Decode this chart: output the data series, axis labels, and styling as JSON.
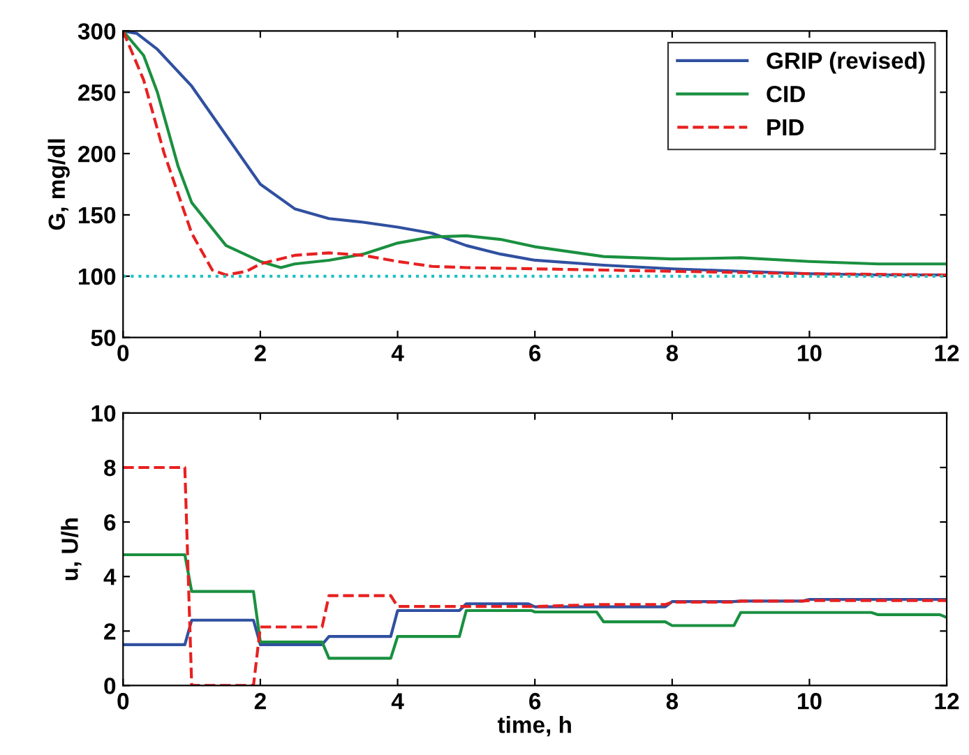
{
  "chart_data": [
    {
      "type": "line",
      "ylabel": "G, mg/dl",
      "xlim": [
        0,
        12
      ],
      "ylim": [
        50,
        300
      ],
      "xticks": [
        0,
        2,
        4,
        6,
        8,
        10,
        12
      ],
      "yticks": [
        50,
        100,
        150,
        200,
        250,
        300
      ],
      "legend": "top right",
      "grid": false,
      "ref_lines": [
        {
          "axis": "y",
          "value": 100,
          "color": "#20c0c0",
          "line_style": "dotted"
        }
      ],
      "series": [
        {
          "name": "GRIP (revised)",
          "color": "#3050a0",
          "line_style": "solid",
          "x": [
            0,
            0.2,
            0.5,
            1,
            1.5,
            2,
            2.5,
            3,
            3.5,
            4,
            4.5,
            5,
            5.5,
            6,
            7,
            8,
            9,
            10,
            11,
            12
          ],
          "values": [
            300,
            298,
            285,
            255,
            215,
            175,
            155,
            147,
            144,
            140,
            135,
            125,
            118,
            113,
            109,
            106,
            104,
            102,
            101,
            101
          ]
        },
        {
          "name": "CID",
          "color": "#1a9040",
          "line_style": "solid",
          "x": [
            0,
            0.3,
            0.5,
            0.8,
            1,
            1.5,
            2,
            2.3,
            2.5,
            3,
            3.5,
            4,
            4.5,
            5,
            5.5,
            6,
            7,
            8,
            9,
            10,
            11,
            12
          ],
          "values": [
            300,
            280,
            250,
            190,
            160,
            125,
            112,
            107,
            110,
            113,
            118,
            127,
            132,
            133,
            130,
            124,
            116,
            114,
            115,
            112,
            110,
            110
          ]
        },
        {
          "name": "PID",
          "color": "#e82020",
          "line_style": "dashed",
          "x": [
            0,
            0.3,
            0.6,
            1,
            1.3,
            1.5,
            1.8,
            2,
            2.5,
            3,
            3.5,
            4,
            4.5,
            5,
            6,
            7,
            8,
            9,
            10,
            12
          ],
          "values": [
            300,
            260,
            200,
            135,
            105,
            101,
            104,
            110,
            117,
            119,
            117,
            112,
            108,
            107,
            106,
            105,
            104,
            103,
            102,
            101
          ]
        }
      ]
    },
    {
      "type": "line",
      "xlabel": "time, h",
      "ylabel": "u, U/h",
      "xlim": [
        0,
        12
      ],
      "ylim": [
        0,
        10
      ],
      "xticks": [
        0,
        2,
        4,
        6,
        8,
        10,
        12
      ],
      "yticks": [
        0,
        2,
        4,
        6,
        8,
        10
      ],
      "grid": false,
      "series": [
        {
          "color": "#3050a0",
          "line_style": "solid",
          "x": [
            0,
            0.9,
            1,
            1.9,
            2,
            2.9,
            3,
            3.9,
            4,
            4.9,
            5,
            5.9,
            6,
            7.9,
            8,
            8.9,
            9,
            9.9,
            10,
            12
          ],
          "values": [
            1.5,
            1.5,
            2.4,
            2.4,
            1.5,
            1.5,
            1.8,
            1.8,
            2.75,
            2.75,
            3.0,
            3.0,
            2.89,
            2.89,
            3.08,
            3.08,
            3.1,
            3.1,
            3.16,
            3.16
          ]
        },
        {
          "color": "#1a9040",
          "line_style": "solid",
          "x": [
            0,
            0.9,
            1,
            1.9,
            2,
            2.9,
            3,
            3.9,
            4,
            4.9,
            5,
            5.95,
            6,
            6.9,
            7,
            7.9,
            8,
            8.9,
            9,
            10.9,
            11,
            11.9,
            12
          ],
          "values": [
            4.8,
            4.8,
            3.45,
            3.45,
            1.6,
            1.6,
            1.0,
            1.0,
            1.8,
            1.8,
            2.75,
            2.75,
            2.7,
            2.7,
            2.34,
            2.34,
            2.2,
            2.2,
            2.68,
            2.68,
            2.6,
            2.6,
            2.5
          ]
        },
        {
          "color": "#e82020",
          "line_style": "dashed",
          "x": [
            0,
            0.9,
            1,
            1.9,
            2,
            2.9,
            3,
            3.9,
            4,
            6,
            6.9,
            7,
            7.9,
            8,
            8.9,
            9,
            9.9,
            10,
            12
          ],
          "values": [
            8,
            8,
            0,
            0,
            2.15,
            2.15,
            3.3,
            3.3,
            2.9,
            2.9,
            2.97,
            2.97,
            2.97,
            3.06,
            3.06,
            3.1,
            3.1,
            3.12,
            3.12
          ]
        }
      ]
    }
  ]
}
